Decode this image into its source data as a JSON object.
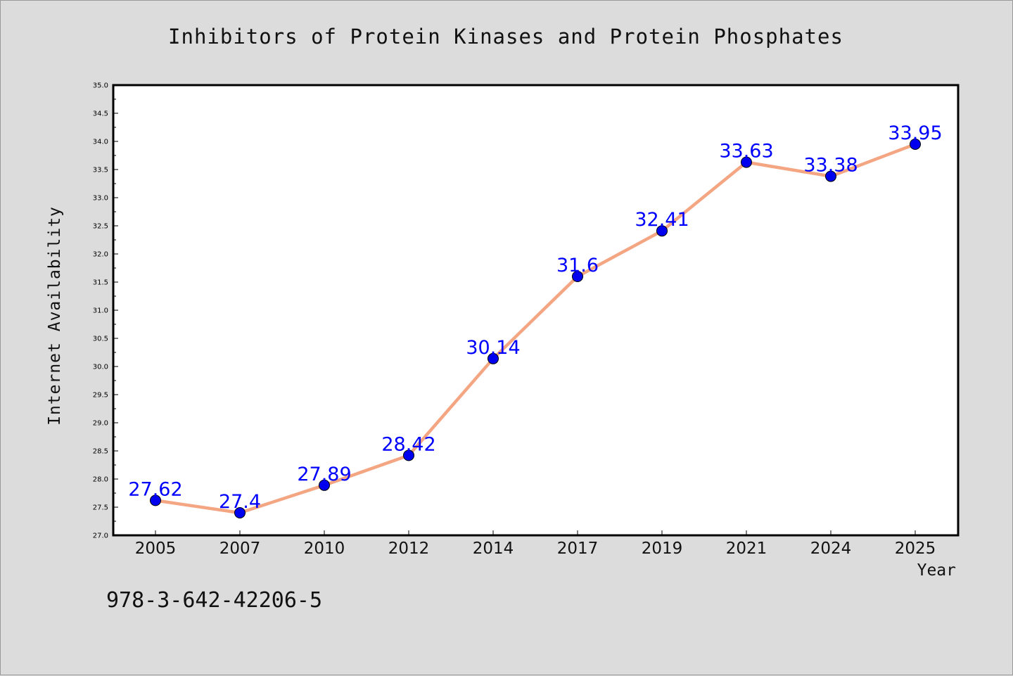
{
  "chart_data": {
    "type": "line",
    "title": "Inhibitors of Protein Kinases and Protein Phosphates",
    "xlabel": "Year",
    "ylabel": "Internet Availability",
    "categories": [
      "2005",
      "2007",
      "2010",
      "2012",
      "2014",
      "2017",
      "2019",
      "2021",
      "2024",
      "2025"
    ],
    "series": [
      {
        "values": [
          27.62,
          27.4,
          27.89,
          28.42,
          30.14,
          31.6,
          32.41,
          33.63,
          33.38,
          33.95
        ],
        "labels": [
          "27.62",
          "27.4",
          "27.89",
          "28.42",
          "30.14",
          "31.6",
          "32.41",
          "33.63",
          "33.38",
          "33.95"
        ]
      }
    ],
    "ylim": [
      27.0,
      35.0
    ],
    "yticks": [
      "27.0",
      "27.5",
      "28.0",
      "28.5",
      "29.0",
      "29.5",
      "30.0",
      "30.5",
      "31.0",
      "31.5",
      "32.0",
      "32.5",
      "33.0",
      "33.5",
      "34.0",
      "34.5",
      "35.0"
    ],
    "grid": false,
    "colors": {
      "line": "#f4a582",
      "marker": "#0000ee",
      "label": "#0000ff"
    }
  },
  "footer": {
    "isbn": "978-3-642-42206-5"
  }
}
